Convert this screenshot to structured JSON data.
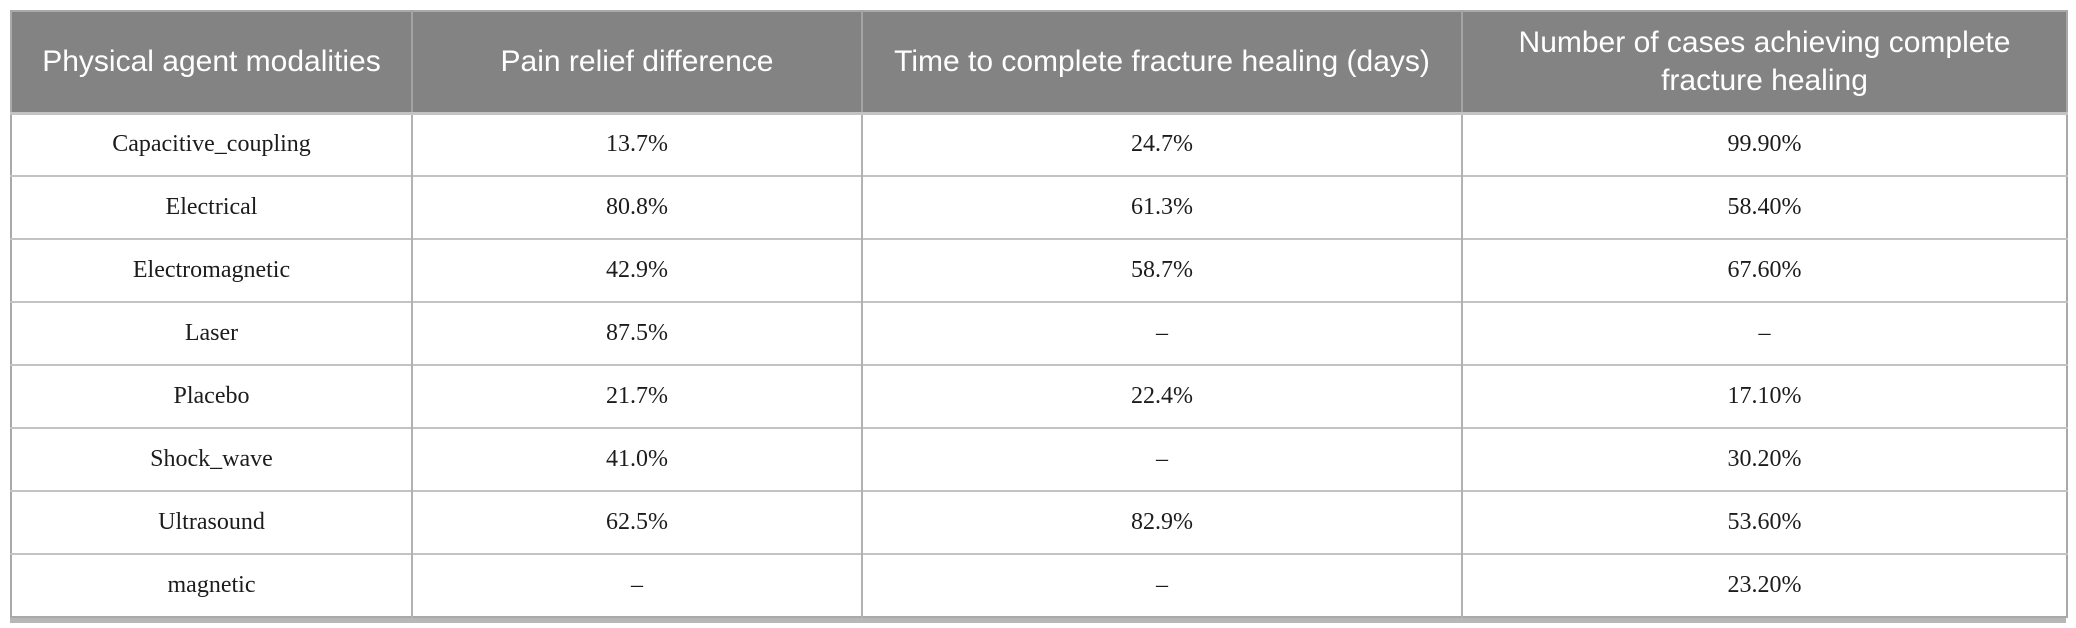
{
  "colors": {
    "header_bg": "#838383",
    "header_text": "#ffffff",
    "body_text": "#1c1c1c",
    "grid_line": "#c3c3c3",
    "outer_border": "#a9a9a9"
  },
  "table": {
    "columns": [
      "Physical agent modalities",
      "Pain relief difference",
      "Time to complete fracture healing (days)",
      "Number of cases achieving complete fracture healing"
    ],
    "rows": [
      [
        "Capacitive_coupling",
        "13.7%",
        "24.7%",
        "99.90%"
      ],
      [
        "Electrical",
        "80.8%",
        "61.3%",
        "58.40%"
      ],
      [
        "Electromagnetic",
        "42.9%",
        "58.7%",
        "67.60%"
      ],
      [
        "Laser",
        "87.5%",
        "–",
        "–"
      ],
      [
        "Placebo",
        "21.7%",
        "22.4%",
        "17.10%"
      ],
      [
        "Shock_wave",
        "41.0%",
        "–",
        "30.20%"
      ],
      [
        "Ultrasound",
        "62.5%",
        "82.9%",
        "53.60%"
      ],
      [
        "magnetic",
        "–",
        "–",
        "23.20%"
      ]
    ]
  }
}
